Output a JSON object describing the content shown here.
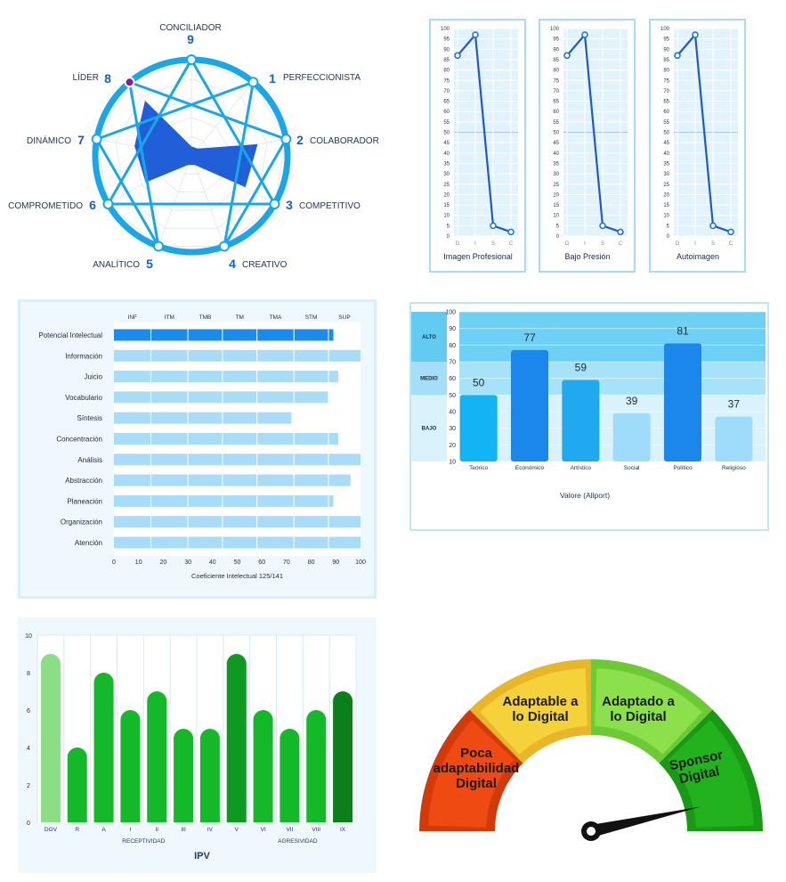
{
  "enneagram": {
    "chart_data": {
      "type": "radar",
      "points": [
        {
          "n": "9",
          "label": "CONCILIADOR"
        },
        {
          "n": "1",
          "label": "PERFECCIONISTA"
        },
        {
          "n": "2",
          "label": "COLABORADOR"
        },
        {
          "n": "3",
          "label": "COMPETITIVO"
        },
        {
          "n": "4",
          "label": "CREATIVO"
        },
        {
          "n": "5",
          "label": "ANALÍTICO"
        },
        {
          "n": "6",
          "label": "COMPROMETIDO"
        },
        {
          "n": "7",
          "label": "DINÁMICO"
        },
        {
          "n": "8",
          "label": "LÍDER"
        }
      ],
      "values": [
        0.1,
        0.1,
        0.7,
        0.65,
        0.1,
        0.1,
        0.55,
        0.6,
        0.75
      ],
      "highlighted": "8",
      "colors": {
        "ring": "#19a7ea",
        "fill": "#1456d6",
        "number": "#1560c8"
      }
    }
  },
  "disc": {
    "chart_data": [
      {
        "type": "line",
        "title": "Imagen Profesional",
        "categories": [
          "D",
          "I",
          "S",
          "C"
        ],
        "values": [
          87,
          97,
          5,
          2
        ],
        "ylim": [
          0,
          100
        ]
      },
      {
        "type": "line",
        "title": "Bajo Presión",
        "categories": [
          "D",
          "I",
          "S",
          "C"
        ],
        "values": [
          87,
          97,
          5,
          2
        ],
        "ylim": [
          0,
          100
        ]
      },
      {
        "type": "line",
        "title": "Autoimagen",
        "categories": [
          "D",
          "I",
          "S",
          "C"
        ],
        "values": [
          87,
          97,
          5,
          2
        ],
        "ylim": [
          0,
          100
        ]
      }
    ],
    "yticks": [
      "100",
      "95",
      "90",
      "85",
      "80",
      "75",
      "70",
      "65",
      "60",
      "55",
      "50",
      "45",
      "40",
      "35",
      "30",
      "25",
      "20",
      "15",
      "10",
      "5",
      "0"
    ]
  },
  "intellect": {
    "chart_data": {
      "type": "bar",
      "orientation": "horizontal",
      "categories": [
        "Potencial Intelectual",
        "Información",
        "Juicio",
        "Vocabulario",
        "Síntesis",
        "Concentración",
        "Análisis",
        "Abstracción",
        "Planeación",
        "Organización",
        "Atención"
      ],
      "values": [
        89,
        100,
        91,
        87,
        72,
        91,
        100,
        96,
        89,
        100,
        100
      ],
      "highlight_index": 0,
      "xlim": [
        0,
        100
      ],
      "xticks": [
        "0",
        "10",
        "20",
        "30",
        "40",
        "50",
        "60",
        "70",
        "80",
        "90",
        "100"
      ],
      "xtick_values": [
        0,
        10,
        20,
        30,
        40,
        50,
        60,
        70,
        80,
        90,
        100
      ],
      "bands": [
        "INF",
        "ITM",
        "TMB",
        "TM",
        "TMA",
        "STM",
        "SUP"
      ],
      "band_bounds": [
        0,
        15,
        30,
        44,
        58,
        73,
        87,
        100
      ],
      "xlabel": "Coeficiente Intelectual 125/141",
      "colors": {
        "highlight": "#1a8cee",
        "bar": "#a9dcf9"
      }
    }
  },
  "allport": {
    "chart_data": {
      "type": "bar",
      "categories": [
        "Teórico",
        "Económico",
        "Artístico",
        "Social",
        "Político",
        "Religioso"
      ],
      "values": [
        50,
        77,
        59,
        39,
        81,
        37
      ],
      "ylim": [
        10,
        100
      ],
      "yticks": [
        "100",
        "90",
        "80",
        "70",
        "60",
        "50",
        "40",
        "30",
        "20",
        "10"
      ],
      "zones": [
        {
          "label": "ALTO",
          "from": 70,
          "to": 100
        },
        {
          "label": "MEDIO",
          "from": 50,
          "to": 70
        },
        {
          "label": "BAJO",
          "from": 10,
          "to": 50
        }
      ],
      "xlabel": "Valore (Allport)",
      "bar_colors": [
        "#12b4f3",
        "#1b86ec",
        "#21a9f0",
        "#9fdcfb",
        "#1b86ec",
        "#9fdcfb"
      ]
    }
  },
  "ipv": {
    "chart_data": {
      "type": "bar",
      "categories": [
        "DGV",
        "R",
        "A",
        "I",
        "II",
        "III",
        "IV",
        "V",
        "VI",
        "VII",
        "VIII",
        "IX"
      ],
      "values": [
        9,
        4,
        8,
        6,
        7,
        5,
        5,
        9,
        6,
        5,
        6,
        7
      ],
      "ylim": [
        0,
        10
      ],
      "yticks": [
        "10",
        "8",
        "6",
        "4",
        "2",
        "0"
      ],
      "groups": [
        "RECEPTIVIDAD",
        "AGRESIVIDAD"
      ],
      "title": "IPV",
      "bar_colors": [
        "#8bdd86",
        "#14b92a",
        "#14b92a",
        "#14b92a",
        "#14b92a",
        "#14b92a",
        "#14b92a",
        "#0e9a21",
        "#14b92a",
        "#14b92a",
        "#14b92a",
        "#0b7f1a"
      ]
    }
  },
  "gauge": {
    "chart_data": {
      "type": "gauge",
      "segments": [
        {
          "label": "Poca adaptabilidad Digital",
          "color": "#ee4a12"
        },
        {
          "label": "Adaptable a lo Digital",
          "color": "#f6d23a"
        },
        {
          "label": "Adaptado a lo Digital",
          "color": "#8be04c"
        },
        {
          "label": "Sponsor Digital",
          "color": "#22b21e"
        }
      ],
      "pointer_value": 0.93
    }
  }
}
